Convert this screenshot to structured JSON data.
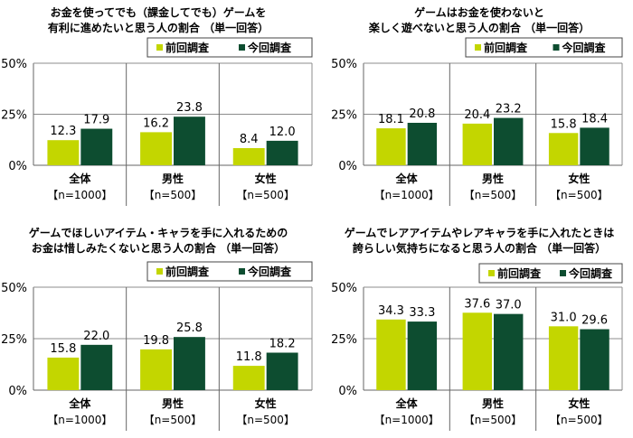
{
  "colors": {
    "previous": "#c3d600",
    "current": "#0d4d30",
    "grid": "#8c8c8c"
  },
  "chart_data": [
    {
      "type": "bar",
      "title": [
        "お金を使ってでも（課金してでも）ゲームを",
        "有利に進めたいと思う人の割合 （単一回答）"
      ],
      "categories": [
        "全体",
        "男性",
        "女性"
      ],
      "category_notes": [
        "【n=1000】",
        "【n=500】",
        "【n=500】"
      ],
      "series": [
        {
          "name": "前回調査",
          "values": [
            12.3,
            16.2,
            8.4
          ]
        },
        {
          "name": "今回調査",
          "values": [
            17.9,
            23.8,
            12.0
          ]
        }
      ],
      "yticks": [
        "0%",
        "25%",
        "50%"
      ],
      "ylim": [
        0,
        50
      ],
      "grid": true,
      "legend": "top-right"
    },
    {
      "type": "bar",
      "title": [
        "ゲームはお金を使わないと",
        "楽しく遊べないと思う人の割合 （単一回答）"
      ],
      "categories": [
        "全体",
        "男性",
        "女性"
      ],
      "category_notes": [
        "【n=1000】",
        "【n=500】",
        "【n=500】"
      ],
      "series": [
        {
          "name": "前回調査",
          "values": [
            18.1,
            20.4,
            15.8
          ]
        },
        {
          "name": "今回調査",
          "values": [
            20.8,
            23.2,
            18.4
          ]
        }
      ],
      "yticks": [
        "0%",
        "25%",
        "50%"
      ],
      "ylim": [
        0,
        50
      ],
      "grid": true,
      "legend": "top-right"
    },
    {
      "type": "bar",
      "title": [
        "ゲームでほしいアイテム・キャラを手に入れるための",
        "お金は惜しみたくないと思う人の割合 （単一回答）"
      ],
      "categories": [
        "全体",
        "男性",
        "女性"
      ],
      "category_notes": [
        "【n=1000】",
        "【n=500】",
        "【n=500】"
      ],
      "series": [
        {
          "name": "前回調査",
          "values": [
            15.8,
            19.8,
            11.8
          ]
        },
        {
          "name": "今回調査",
          "values": [
            22.0,
            25.8,
            18.2
          ]
        }
      ],
      "yticks": [
        "0%",
        "25%",
        "50%"
      ],
      "ylim": [
        0,
        50
      ],
      "grid": true,
      "legend": "top-right"
    },
    {
      "type": "bar",
      "title": [
        "ゲームでレアアイテムやレアキャラを手に入れたときは",
        "誇らしい気持ちになると思う人の割合 （単一回答）"
      ],
      "categories": [
        "全体",
        "男性",
        "女性"
      ],
      "category_notes": [
        "【n=1000】",
        "【n=500】",
        "【n=500】"
      ],
      "series": [
        {
          "name": "前回調査",
          "values": [
            34.3,
            37.6,
            31.0
          ]
        },
        {
          "name": "今回調査",
          "values": [
            33.3,
            37.0,
            29.6
          ]
        }
      ],
      "yticks": [
        "0%",
        "25%",
        "50%"
      ],
      "ylim": [
        0,
        50
      ],
      "grid": true,
      "legend": "top-right"
    }
  ]
}
